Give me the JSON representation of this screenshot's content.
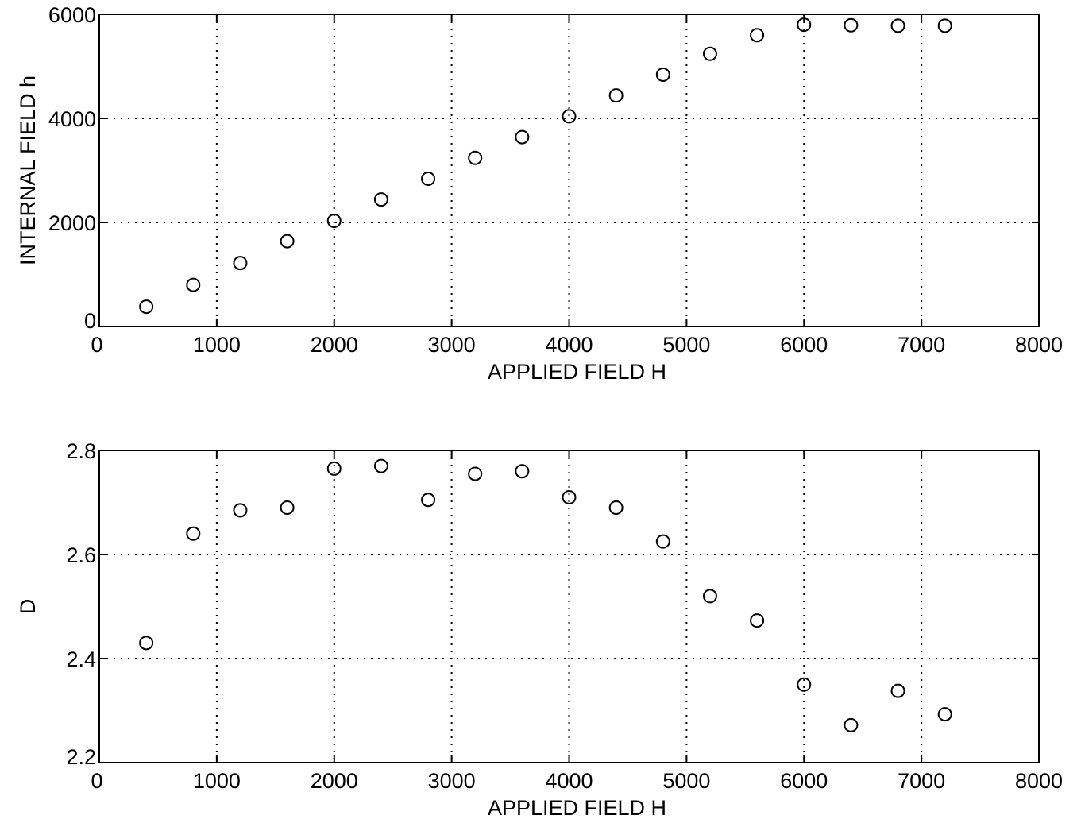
{
  "chart_data": [
    {
      "type": "scatter",
      "title": "",
      "xlabel": "APPLIED FIELD H",
      "ylabel": "INTERNAL FIELD h",
      "xlim": [
        0,
        8000
      ],
      "ylim": [
        0,
        6000
      ],
      "x_ticks": [
        "0",
        "1000",
        "2000",
        "3000",
        "4000",
        "5000",
        "6000",
        "7000",
        "8000"
      ],
      "y_ticks": [
        "0",
        "2000",
        "4000",
        "6000"
      ],
      "grid": true,
      "grid_style": "dotted",
      "marker": "open-circle",
      "x": [
        400,
        800,
        1200,
        1600,
        2000,
        2400,
        2800,
        3200,
        3600,
        4000,
        4400,
        4800,
        5200,
        5600,
        6000,
        6400,
        6800,
        7200
      ],
      "y": [
        380,
        800,
        1220,
        1640,
        2030,
        2440,
        2840,
        3240,
        3640,
        4040,
        4440,
        4840,
        5240,
        5600,
        5800,
        5790,
        5780,
        5780
      ]
    },
    {
      "type": "scatter",
      "title": "",
      "xlabel": "APPLIED FIELD H",
      "ylabel": "D",
      "xlim": [
        0,
        8000
      ],
      "ylim": [
        2.2,
        2.8
      ],
      "x_ticks": [
        "0",
        "1000",
        "2000",
        "3000",
        "4000",
        "5000",
        "6000",
        "7000",
        "8000"
      ],
      "y_ticks": [
        "2.2",
        "2.4",
        "2.6",
        "2.8"
      ],
      "grid": true,
      "grid_style": "dotted",
      "marker": "open-circle",
      "x": [
        400,
        800,
        1200,
        1600,
        2000,
        2400,
        2800,
        3200,
        3600,
        4000,
        4400,
        4800,
        5200,
        5600,
        6000,
        6400,
        6800,
        7200
      ],
      "y": [
        2.43,
        2.64,
        2.685,
        2.69,
        2.765,
        2.77,
        2.705,
        2.755,
        2.76,
        2.71,
        2.69,
        2.625,
        2.52,
        2.473,
        2.35,
        2.272,
        2.338,
        2.293
      ]
    }
  ]
}
